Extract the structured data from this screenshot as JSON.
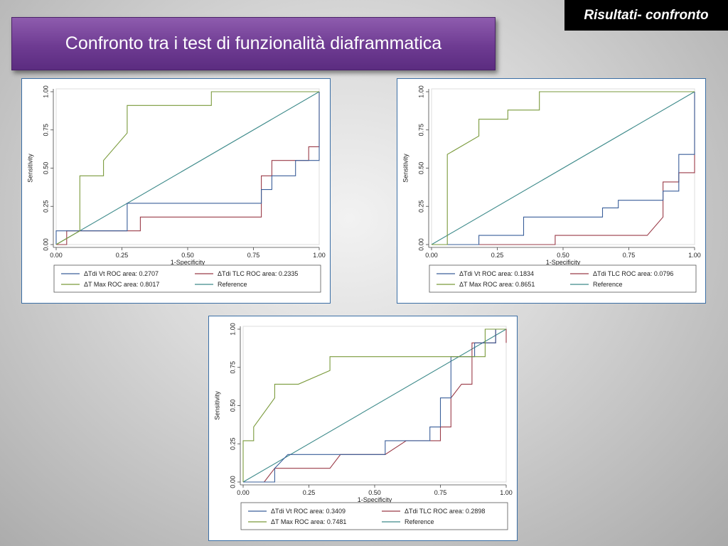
{
  "header": {
    "corner_label": "Risultati- confronto",
    "title": "Confronto tra i test di funzionalità diaframmatica"
  },
  "colors": {
    "vt": "#3a5f9a",
    "tlc": "#9a3b48",
    "tmax": "#7a9a3b",
    "reference": "#3d8a8a",
    "frame_border": "#3a6ea5",
    "title_bg": "#6e3b92"
  },
  "chart_data": [
    {
      "type": "line",
      "xlabel": "1-Specificity",
      "ylabel": "Sensitivity",
      "xlim": [
        0,
        1
      ],
      "ylim": [
        0,
        1
      ],
      "xticks": [
        "0.00",
        "0.25",
        "0.50",
        "0.75",
        "1.00"
      ],
      "yticks": [
        "0.00",
        "0.25",
        "0.50",
        "0.75",
        "1.00"
      ],
      "grid": false,
      "legend_position": "bottom",
      "series": [
        {
          "key": "vt",
          "name": "ΔTdi Vt ROC area: 0.2707",
          "x": [
            0,
            0,
            0.04,
            0.04,
            0.27,
            0.27,
            0.78,
            0.78,
            0.82,
            0.82,
            0.91,
            0.91,
            1,
            1
          ],
          "y": [
            0,
            0.09,
            0.09,
            0.09,
            0.09,
            0.27,
            0.27,
            0.36,
            0.36,
            0.45,
            0.45,
            0.55,
            0.55,
            1
          ]
        },
        {
          "key": "tlc",
          "name": "ΔTdi TLC ROC area: 0.2335",
          "x": [
            0,
            0.04,
            0.04,
            0.32,
            0.32,
            0.78,
            0.78,
            0.82,
            0.82,
            0.87,
            0.87,
            0.96,
            0.96,
            1,
            1
          ],
          "y": [
            0,
            0,
            0.09,
            0.09,
            0.18,
            0.18,
            0.45,
            0.45,
            0.55,
            0.55,
            0.55,
            0.55,
            0.64,
            0.64,
            1
          ]
        },
        {
          "key": "tmax",
          "name": "ΔT Max ROC area: 0.8017",
          "x": [
            0,
            0.09,
            0.09,
            0.18,
            0.18,
            0.27,
            0.27,
            0.59,
            0.59,
            1
          ],
          "y": [
            0,
            0.09,
            0.45,
            0.45,
            0.55,
            0.73,
            0.91,
            0.91,
            1,
            1
          ]
        },
        {
          "key": "reference",
          "name": "Reference",
          "x": [
            0,
            1
          ],
          "y": [
            0,
            1
          ]
        }
      ]
    },
    {
      "type": "line",
      "xlabel": "1-Specificity",
      "ylabel": "Sensitivity",
      "xlim": [
        0,
        1
      ],
      "ylim": [
        0,
        1
      ],
      "xticks": [
        "0.00",
        "0.25",
        "0.50",
        "0.75",
        "1.00"
      ],
      "yticks": [
        "0.00",
        "0.25",
        "0.50",
        "0.75",
        "1.00"
      ],
      "grid": false,
      "legend_position": "bottom",
      "series": [
        {
          "key": "vt",
          "name": "ΔTdi Vt ROC area: 0.1834",
          "x": [
            0,
            0.18,
            0.18,
            0.35,
            0.35,
            0.65,
            0.65,
            0.71,
            0.71,
            0.88,
            0.88,
            0.94,
            0.94,
            1,
            1
          ],
          "y": [
            0,
            0,
            0.06,
            0.06,
            0.18,
            0.18,
            0.24,
            0.24,
            0.29,
            0.29,
            0.35,
            0.35,
            0.59,
            0.59,
            1
          ]
        },
        {
          "key": "tlc",
          "name": "ΔTdi TLC ROC area: 0.0796",
          "x": [
            0,
            0.47,
            0.47,
            0.82,
            0.88,
            0.88,
            0.94,
            0.94,
            1,
            1
          ],
          "y": [
            0,
            0,
            0.06,
            0.06,
            0.18,
            0.41,
            0.41,
            0.47,
            0.47,
            1
          ]
        },
        {
          "key": "tmax",
          "name": "ΔT Max ROC area: 0.8651",
          "x": [
            0,
            0.06,
            0.06,
            0.18,
            0.18,
            0.29,
            0.29,
            0.41,
            0.41,
            1
          ],
          "y": [
            0,
            0,
            0.59,
            0.71,
            0.82,
            0.82,
            0.88,
            0.88,
            1,
            1
          ]
        },
        {
          "key": "reference",
          "name": "Reference",
          "x": [
            0,
            1
          ],
          "y": [
            0,
            1
          ]
        }
      ]
    },
    {
      "type": "line",
      "xlabel": "1-Specificity",
      "ylabel": "Sensitivity",
      "xlim": [
        0,
        1
      ],
      "ylim": [
        0,
        1
      ],
      "xticks": [
        "0.00",
        "0.25",
        "0.50",
        "0.75",
        "1.00"
      ],
      "yticks": [
        "0.00",
        "0.25",
        "0.50",
        "0.75",
        "1.00"
      ],
      "grid": false,
      "legend_position": "bottom",
      "series": [
        {
          "key": "vt",
          "name": "ΔTdi Vt ROC area: 0.3409",
          "x": [
            0,
            0.12,
            0.12,
            0.17,
            0.17,
            0.54,
            0.54,
            0.71,
            0.71,
            0.75,
            0.75,
            0.79,
            0.79,
            0.88,
            0.88,
            0.96,
            0.96,
            1
          ],
          "y": [
            0,
            0,
            0.09,
            0.18,
            0.18,
            0.18,
            0.27,
            0.27,
            0.36,
            0.36,
            0.55,
            0.55,
            0.82,
            0.82,
            0.91,
            0.91,
            1,
            1
          ]
        },
        {
          "key": "tlc",
          "name": "ΔTdi TLC ROC area: 0.2898",
          "x": [
            0,
            0.08,
            0.12,
            0.12,
            0.33,
            0.37,
            0.54,
            0.62,
            0.75,
            0.75,
            0.79,
            0.79,
            0.83,
            0.83,
            0.87,
            0.87,
            0.92,
            0.96,
            0.96,
            1,
            1
          ],
          "y": [
            0,
            0,
            0.09,
            0.09,
            0.09,
            0.18,
            0.18,
            0.27,
            0.27,
            0.36,
            0.36,
            0.55,
            0.64,
            0.64,
            0.64,
            0.91,
            0.91,
            0.91,
            1,
            1,
            0.91
          ]
        },
        {
          "key": "tmax",
          "name": "ΔT Max ROC area: 0.7481",
          "x": [
            0,
            0,
            0.04,
            0.04,
            0.12,
            0.12,
            0.21,
            0.33,
            0.33,
            0.79,
            0.87,
            0.92,
            0.92,
            0.96,
            0.96,
            1
          ],
          "y": [
            0,
            0.27,
            0.27,
            0.36,
            0.55,
            0.64,
            0.64,
            0.73,
            0.82,
            0.82,
            0.82,
            0.82,
            1,
            1,
            1,
            1
          ]
        },
        {
          "key": "reference",
          "name": "Reference",
          "x": [
            0,
            1
          ],
          "y": [
            0,
            1
          ]
        }
      ]
    }
  ]
}
